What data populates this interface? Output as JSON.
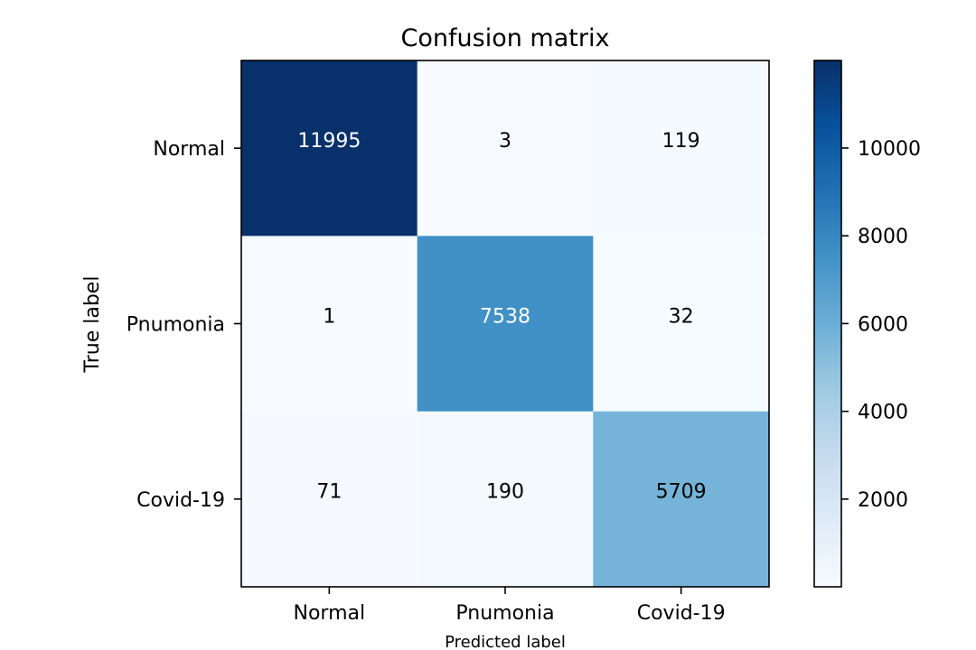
{
  "chart_data": {
    "type": "heatmap",
    "title": "Confusion matrix",
    "xlabel": "Predicted label",
    "ylabel": "True label",
    "x_categories": [
      "Normal",
      "Pnumonia",
      "Covid-19"
    ],
    "y_categories": [
      "Normal",
      "Pnumonia",
      "Covid-19"
    ],
    "values": [
      [
        11995,
        3,
        119
      ],
      [
        1,
        7538,
        32
      ],
      [
        71,
        190,
        5709
      ]
    ],
    "colormap": "Blues",
    "color_low": "#f7fbff",
    "color_high": "#08306b",
    "colorbar": {
      "min": 1,
      "max": 11995,
      "ticks": [
        2000,
        4000,
        6000,
        8000,
        10000
      ]
    },
    "grid": false
  }
}
